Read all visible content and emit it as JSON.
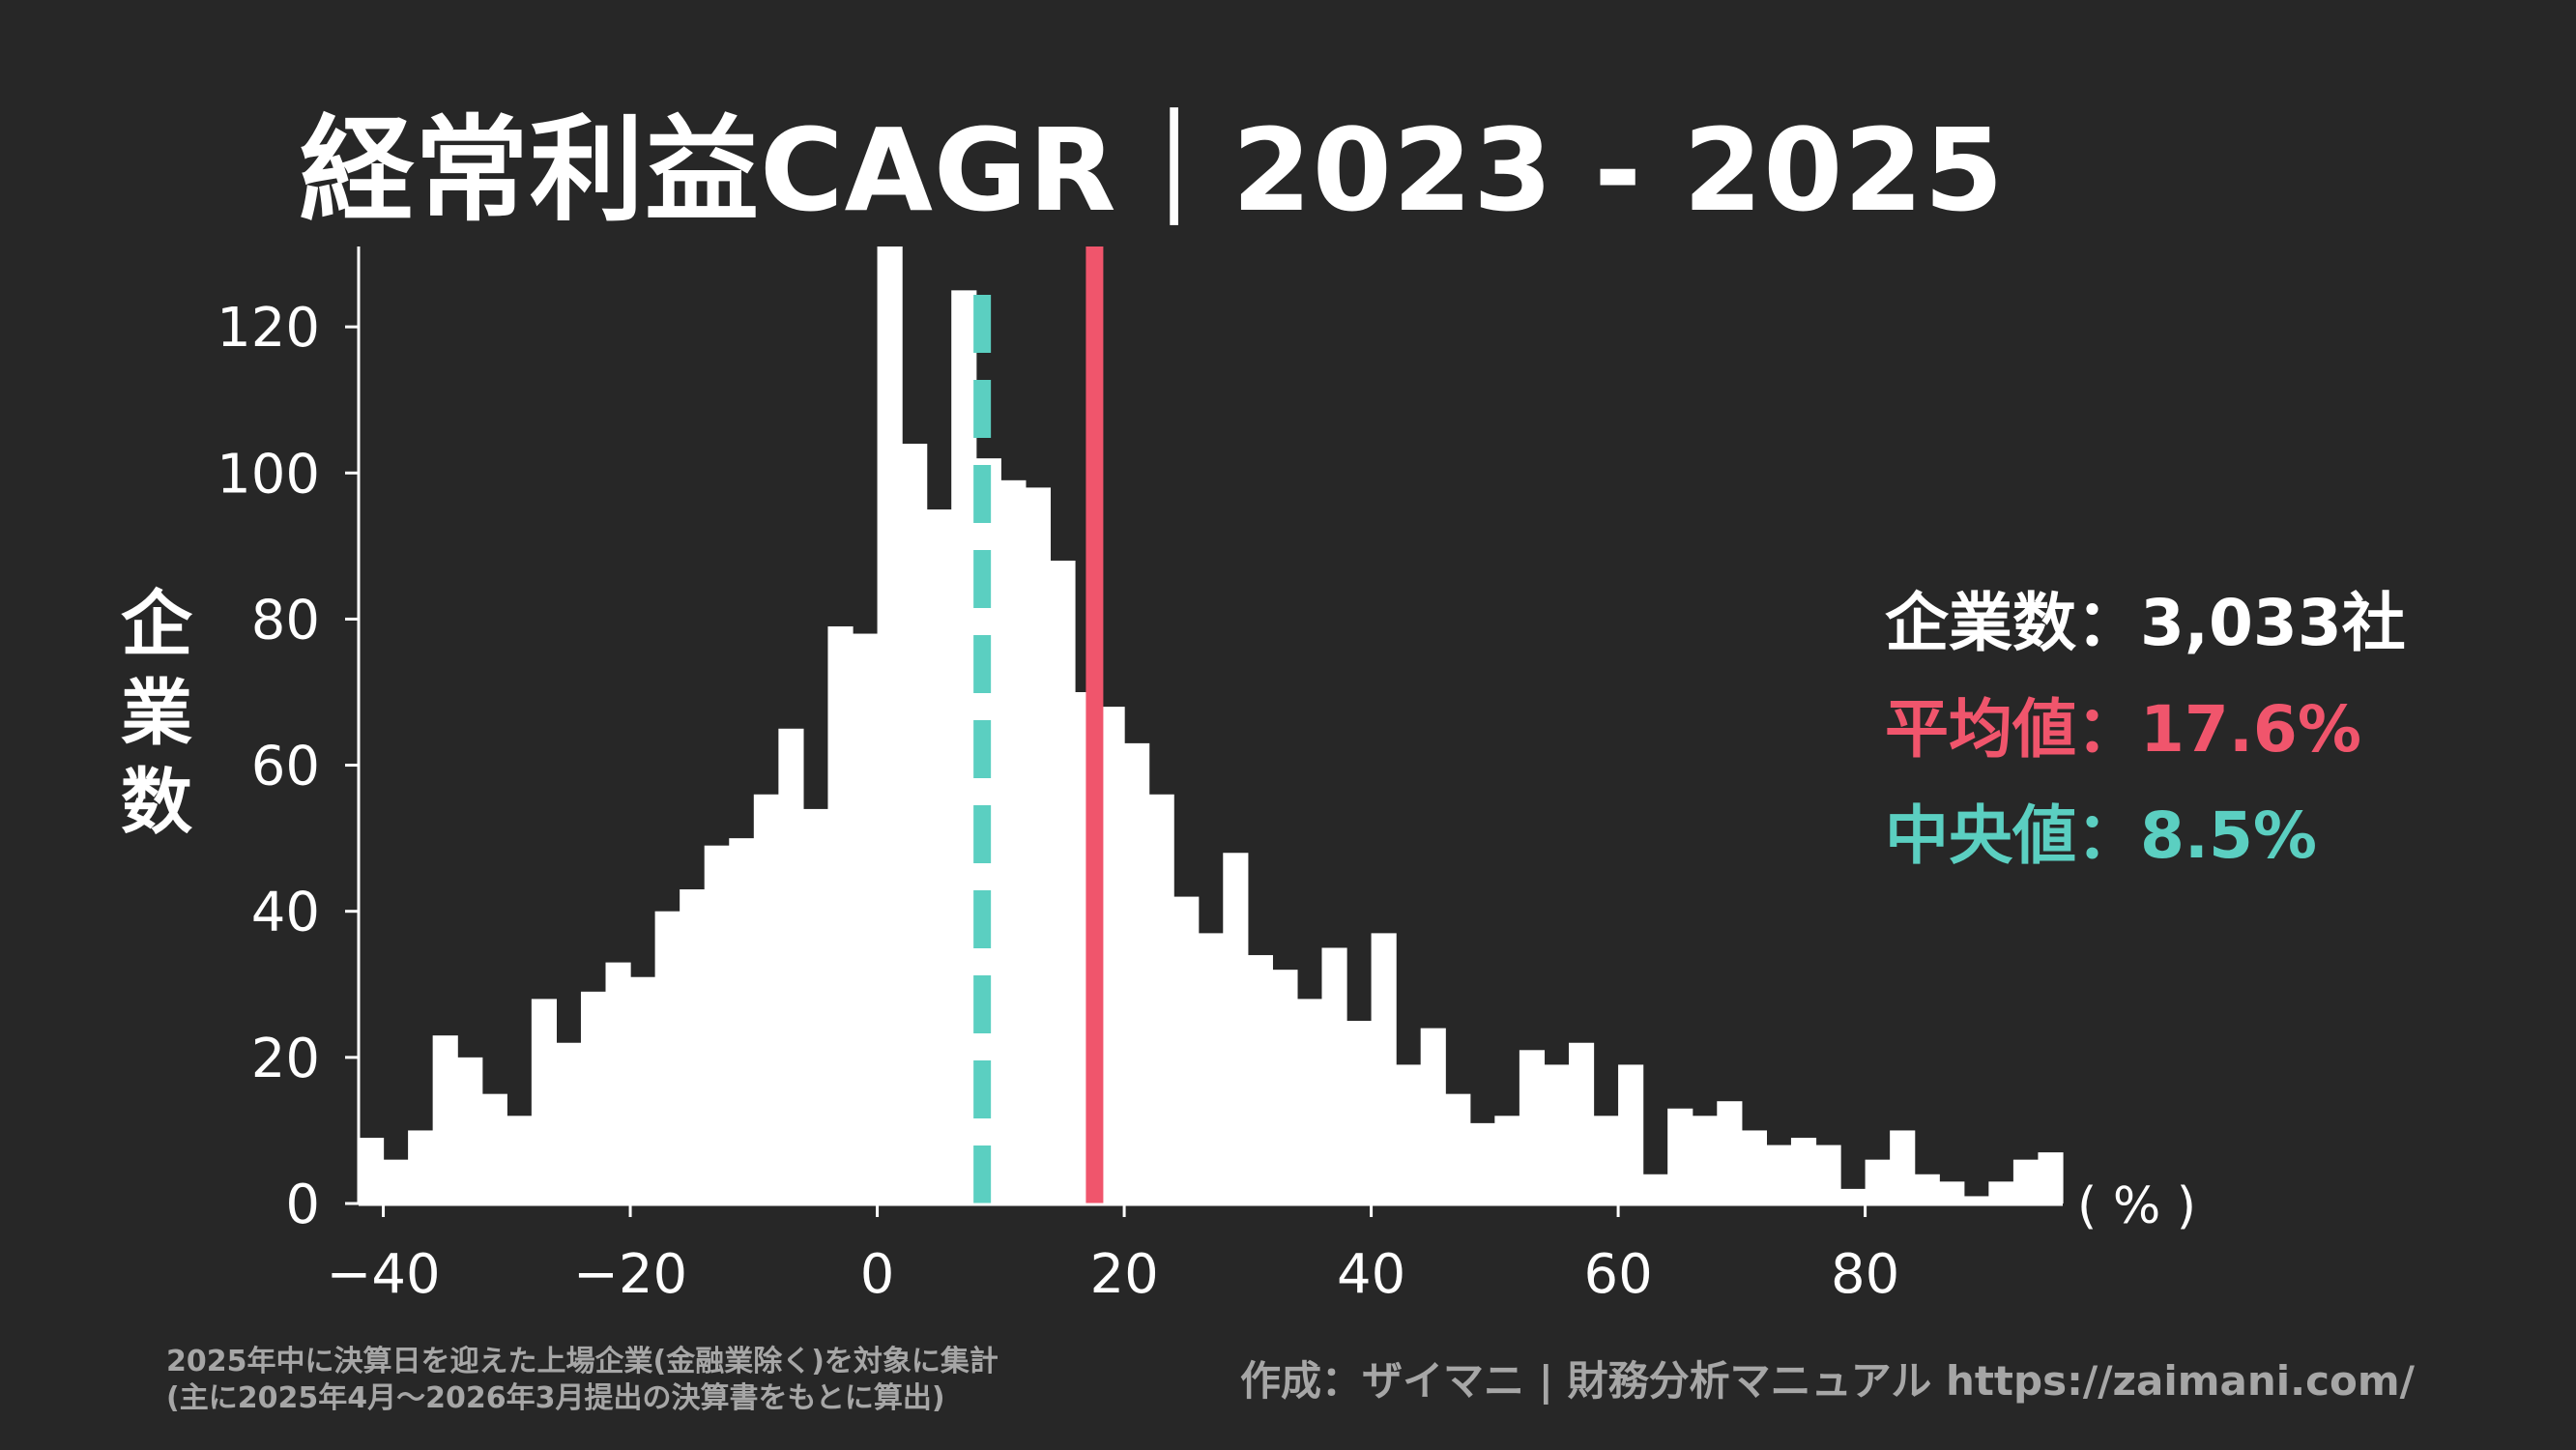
{
  "title": "経常利益CAGR｜2023 - 2025",
  "ylabel_chars": [
    "企",
    "業",
    "数"
  ],
  "stats": {
    "count_label": "企業数：3,033社",
    "mean_label": "平均値：17.6%",
    "median_label": "中央値：8.5%"
  },
  "colors": {
    "background": "#272727",
    "bars": "#ffffff",
    "mean": "#f0556c",
    "median": "#5bcfc1",
    "text": "#ffffff",
    "note": "#a6a6a6"
  },
  "footnote": {
    "line1": "2025年中に決算日を迎えた上場企業(金融業除く)を対象に集計",
    "line2": "(主に2025年4月～2026年3月提出の決算書をもとに算出)"
  },
  "credit": "作成：ザイマニ | 財務分析マニュアル https://zaimani.com/",
  "chart_data": {
    "type": "bar",
    "subtype": "histogram",
    "bin_start": -42,
    "bin_width": 2,
    "values": [
      9,
      6,
      10,
      23,
      20,
      15,
      12,
      28,
      22,
      29,
      33,
      31,
      40,
      43,
      49,
      50,
      56,
      65,
      54,
      79,
      78,
      131,
      104,
      95,
      125,
      102,
      99,
      98,
      88,
      70,
      68,
      63,
      56,
      42,
      37,
      48,
      34,
      32,
      28,
      35,
      25,
      37,
      19,
      24,
      15,
      11,
      12,
      21,
      19,
      22,
      12,
      19,
      4,
      13,
      12,
      14,
      10,
      8,
      9,
      8,
      2,
      6,
      10,
      4,
      3,
      1,
      3,
      6,
      7
    ],
    "xlabel": "",
    "ylabel": "企業数",
    "x_unit": "( % )",
    "xlim": [
      -42,
      96
    ],
    "ylim": [
      0,
      131
    ],
    "x_ticks": [
      -40,
      -20,
      0,
      20,
      40,
      60,
      80
    ],
    "x_tick_labels": [
      "−40",
      "−20",
      "0",
      "20",
      "40",
      "60",
      "80"
    ],
    "y_ticks": [
      0,
      20,
      40,
      60,
      80,
      100,
      120
    ],
    "y_tick_labels": [
      "0",
      "20",
      "40",
      "60",
      "80",
      "100",
      "120"
    ],
    "mean": 17.6,
    "median": 8.5,
    "count": 3033,
    "grid": false,
    "legend": "right"
  }
}
